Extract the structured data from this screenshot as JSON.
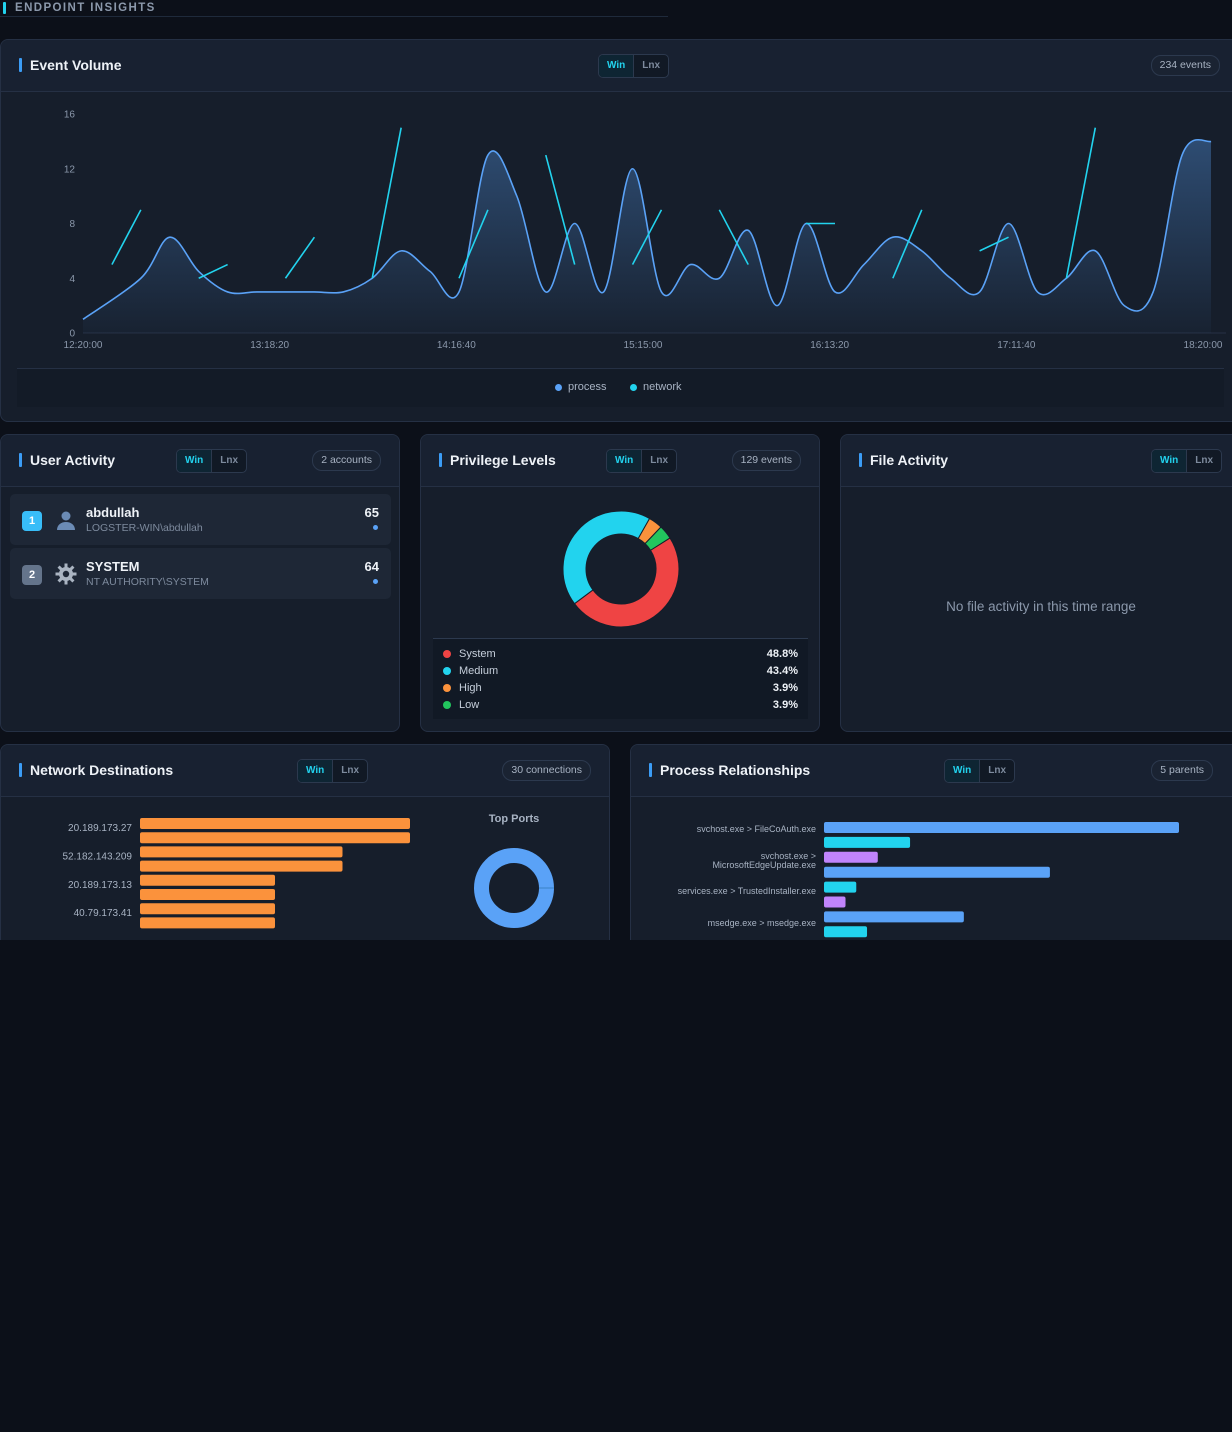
{
  "page": {
    "section_title": "ENDPOINT INSIGHTS"
  },
  "colors": {
    "accent": "#22d3ee",
    "process": "#5aa2f7",
    "network": "#22d3ee",
    "orange": "#fb923c",
    "purple": "#c084fc",
    "red": "#ef4444",
    "green": "#22c55e"
  },
  "event_volume": {
    "title": "Event Volume",
    "toggle": [
      "Win",
      "Lnx"
    ],
    "badge": "234 events",
    "legend": {
      "process": "process",
      "network": "network"
    }
  },
  "user_activity": {
    "title": "User Activity",
    "toggle": [
      "Win",
      "Lnx"
    ],
    "badge": "2 accounts",
    "users": [
      {
        "rank": "1",
        "name": "abdullah",
        "sub": "LOGSTER-WIN\\abdullah",
        "count": "65",
        "icon": "user-icon",
        "rank_color": "#38bdf8"
      },
      {
        "rank": "2",
        "name": "SYSTEM",
        "sub": "NT AUTHORITY\\SYSTEM",
        "count": "64",
        "icon": "gear-icon",
        "rank_color": "#64748b"
      }
    ]
  },
  "privilege_levels": {
    "title": "Privilege Levels",
    "toggle": [
      "Win",
      "Lnx"
    ],
    "badge": "129 events",
    "items": [
      {
        "name": "System",
        "pct": "48.8%",
        "value": 48.8,
        "color": "#ef4444"
      },
      {
        "name": "Medium",
        "pct": "43.4%",
        "value": 43.4,
        "color": "#22d3ee"
      },
      {
        "name": "High",
        "pct": "3.9%",
        "value": 3.9,
        "color": "#fb923c"
      },
      {
        "name": "Low",
        "pct": "3.9%",
        "value": 3.9,
        "color": "#22c55e"
      }
    ]
  },
  "file_activity": {
    "title": "File Activity",
    "toggle": [
      "Win",
      "Lnx"
    ],
    "empty": "No file activity in this time range"
  },
  "network_destinations": {
    "title": "Network Destinations",
    "toggle": [
      "Win",
      "Lnx"
    ],
    "badge": "30 connections",
    "top_ports_title": "Top Ports"
  },
  "process_relationships": {
    "title": "Process Relationships",
    "toggle": [
      "Win",
      "Lnx"
    ],
    "badge": "5 parents"
  },
  "chart_data": [
    {
      "type": "area",
      "x_ticks": [
        "12:20:00",
        "13:18:20",
        "14:16:40",
        "15:15:00",
        "16:13:20",
        "17:11:40",
        "18:20:00"
      ],
      "ylim": [
        0,
        16
      ],
      "y_ticks": [
        "0",
        "4",
        "8",
        "12",
        "16"
      ],
      "legend": "bottom-center",
      "series": [
        {
          "name": "process",
          "color": "#5aa2f7",
          "points": [
            [
              0,
              1
            ],
            [
              2,
              4
            ],
            [
              3,
              7
            ],
            [
              4,
              4.5
            ],
            [
              5,
              3
            ],
            [
              6,
              3
            ],
            [
              7,
              3
            ],
            [
              8,
              3
            ],
            [
              9,
              3
            ],
            [
              10,
              4
            ],
            [
              11,
              6
            ],
            [
              12,
              4.5
            ],
            [
              13,
              3
            ],
            [
              14,
              13
            ],
            [
              15,
              10
            ],
            [
              16,
              3
            ],
            [
              17,
              8
            ],
            [
              18,
              3
            ],
            [
              19,
              12
            ],
            [
              20,
              3
            ],
            [
              21,
              5
            ],
            [
              22,
              4
            ],
            [
              23,
              7.5
            ],
            [
              24,
              2
            ],
            [
              25,
              8
            ],
            [
              26,
              3
            ],
            [
              27,
              5
            ],
            [
              28,
              7
            ],
            [
              29,
              6
            ],
            [
              30,
              4
            ],
            [
              31,
              3
            ],
            [
              32,
              8
            ],
            [
              33,
              3
            ],
            [
              34,
              4
            ],
            [
              35,
              6
            ],
            [
              36,
              2
            ],
            [
              37,
              3
            ],
            [
              38,
              13
            ],
            [
              39,
              14
            ]
          ]
        },
        {
          "name": "network",
          "color": "#22d3ee",
          "segments": [
            [
              [
                1,
                5
              ],
              [
                2,
                9
              ]
            ],
            [
              [
                4,
                4
              ],
              [
                5,
                5
              ]
            ],
            [
              [
                7,
                4
              ],
              [
                8,
                7
              ]
            ],
            [
              [
                10,
                4
              ],
              [
                11,
                15
              ]
            ],
            [
              [
                13,
                4
              ],
              [
                14,
                9
              ]
            ],
            [
              [
                16,
                13
              ],
              [
                17,
                5
              ]
            ],
            [
              [
                19,
                5
              ],
              [
                20,
                9
              ]
            ],
            [
              [
                22,
                9
              ],
              [
                23,
                5
              ]
            ],
            [
              [
                25,
                8
              ],
              [
                26,
                8
              ]
            ],
            [
              [
                28,
                4
              ],
              [
                29,
                9
              ]
            ],
            [
              [
                31,
                6
              ],
              [
                32,
                7
              ]
            ],
            [
              [
                34,
                4
              ],
              [
                35,
                15
              ]
            ]
          ]
        }
      ]
    },
    {
      "type": "pie",
      "title": "Privilege Levels",
      "categories": [
        "System",
        "Medium",
        "High",
        "Low"
      ],
      "values": [
        48.8,
        43.4,
        3.9,
        3.9
      ]
    },
    {
      "type": "bar",
      "title": "Network Destinations",
      "categories": [
        "20.189.173.27",
        "",
        "52.182.143.209",
        "",
        "20.189.173.13",
        "",
        "40.79.173.41",
        ""
      ],
      "values": [
        4,
        4,
        3,
        3,
        2,
        2,
        2,
        2
      ],
      "xlim": [
        0,
        4
      ]
    },
    {
      "type": "pie",
      "title": "Top Ports",
      "categories": [
        ""
      ],
      "values": [
        100
      ]
    },
    {
      "type": "bar",
      "title": "Process Relationships",
      "categories": [
        "svchost.exe > FileCoAuth.exe",
        "",
        "svchost.exe > MicrosoftEdgeUpdate.exe",
        "",
        "services.exe > TrustedInstaller.exe",
        "",
        "msedge.exe > msedge.exe",
        ""
      ],
      "values": [
        33,
        8,
        5,
        21,
        3,
        2,
        13,
        4
      ],
      "colors": [
        "#5aa2f7",
        "#22d3ee",
        "#c084fc",
        "#5aa2f7",
        "#22d3ee",
        "#c084fc",
        "#5aa2f7",
        "#22d3ee"
      ]
    }
  ]
}
